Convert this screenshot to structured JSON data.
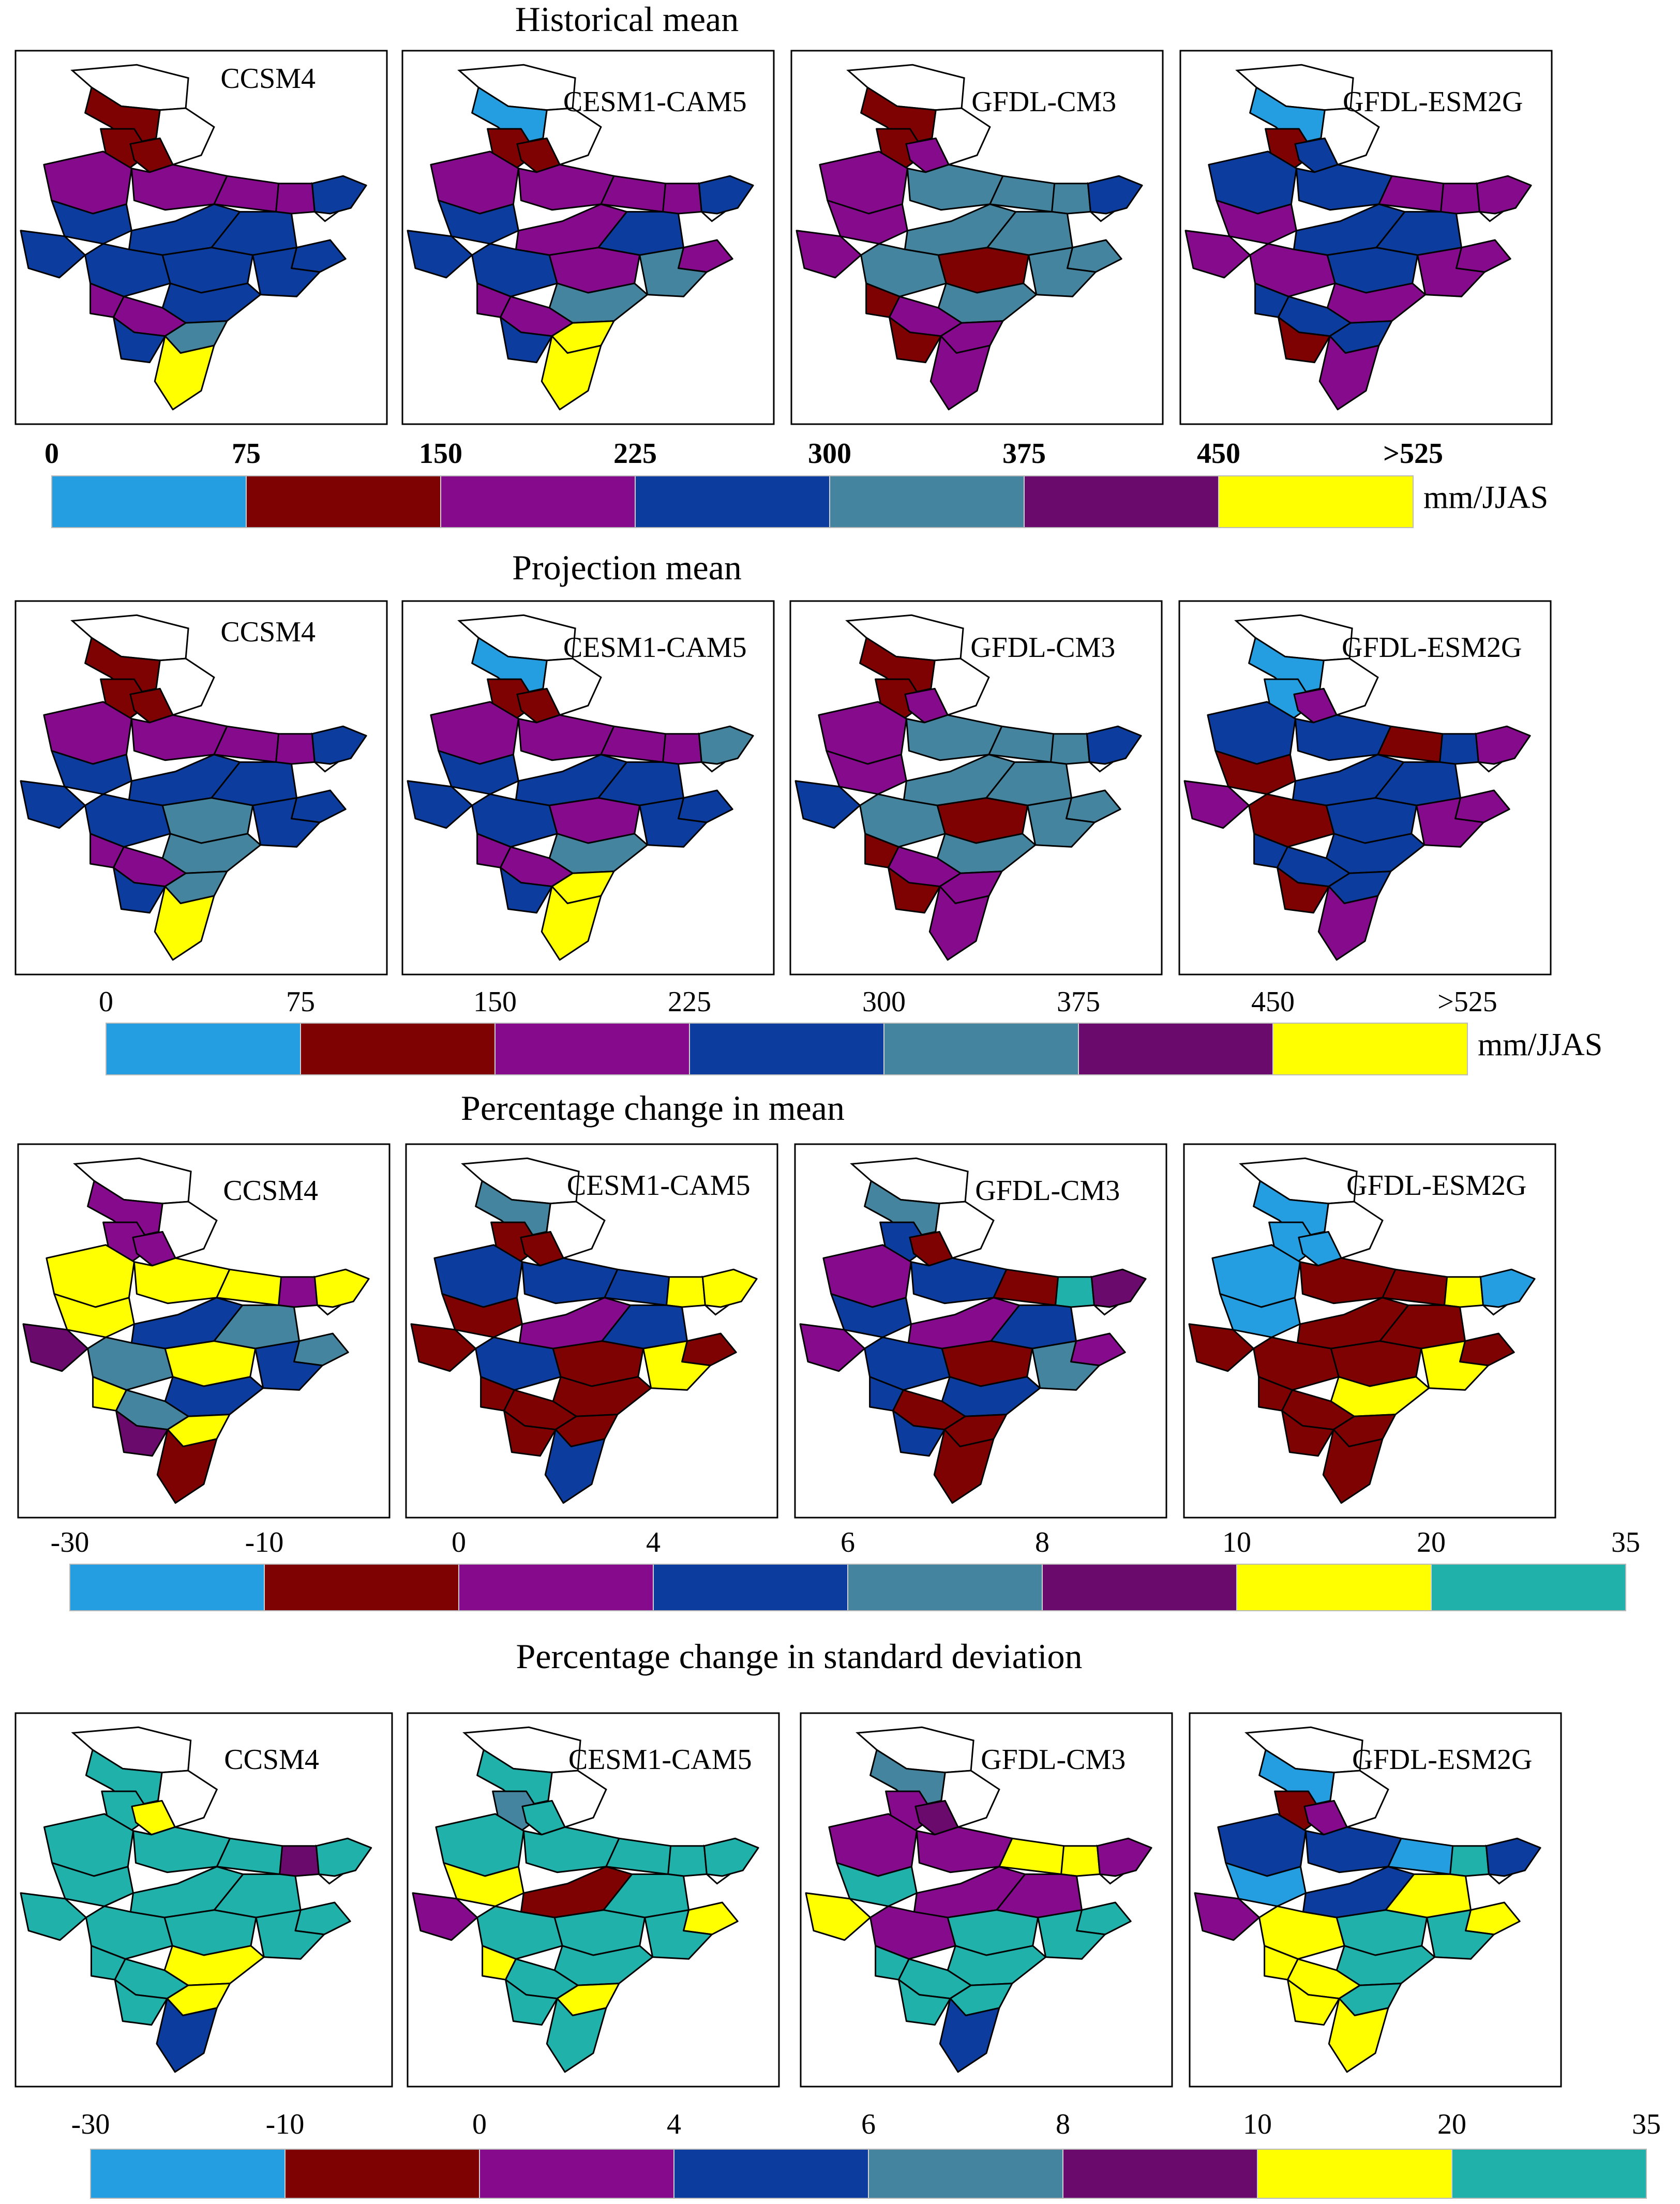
{
  "chart_data": {
    "type": "choropleth-panels",
    "rows": [
      {
        "title": "Historical mean",
        "unit": "mm/JJAS",
        "bold_ticks": true,
        "ticks": [
          "0",
          "75",
          "150",
          "225",
          "300",
          "375",
          "450",
          ">525"
        ],
        "colors": [
          "#249ee0",
          "#7f0202",
          "#850a8c",
          "#0c3c9e",
          "#45849e",
          "#6a0a6c",
          "#ffff00"
        ],
        "panels": [
          {
            "model": "CCSM4",
            "regions": [
              1,
              1,
              1,
              2,
              2,
              2,
              2,
              3,
              3,
              3,
              3,
              3,
              3,
              3,
              3,
              2,
              3,
              2,
              4,
              3,
              6,
              3
            ]
          },
          {
            "model": "CESM1-CAM5",
            "regions": [
              0,
              1,
              1,
              2,
              2,
              2,
              2,
              3,
              3,
              2,
              3,
              2,
              3,
              2,
              4,
              2,
              4,
              2,
              6,
              3,
              6,
              3
            ]
          },
          {
            "model": "GFDL-CM3",
            "regions": [
              1,
              1,
              2,
              2,
              4,
              4,
              4,
              2,
              2,
              4,
              4,
              4,
              4,
              1,
              4,
              1,
              4,
              2,
              2,
              1,
              2,
              3
            ]
          },
          {
            "model": "GFDL-ESM2G",
            "regions": [
              0,
              1,
              3,
              3,
              3,
              2,
              2,
              2,
              2,
              3,
              3,
              2,
              2,
              3,
              2,
              3,
              2,
              3,
              3,
              1,
              2,
              2
            ]
          }
        ]
      },
      {
        "title": "Projection mean",
        "unit": "mm/JJAS",
        "bold_ticks": false,
        "ticks": [
          "0",
          "75",
          "150",
          "225",
          "300",
          "375",
          "450",
          ">525"
        ],
        "colors": [
          "#249ee0",
          "#7f0202",
          "#850a8c",
          "#0c3c9e",
          "#45849e",
          "#6a0a6c",
          "#ffff00"
        ],
        "panels": [
          {
            "model": "CCSM4",
            "regions": [
              1,
              1,
              1,
              2,
              2,
              2,
              2,
              3,
              3,
              3,
              3,
              3,
              3,
              4,
              3,
              2,
              4,
              2,
              4,
              3,
              6,
              3
            ]
          },
          {
            "model": "CESM1-CAM5",
            "regions": [
              0,
              1,
              1,
              2,
              2,
              2,
              2,
              3,
              3,
              3,
              3,
              3,
              3,
              2,
              3,
              2,
              4,
              2,
              6,
              3,
              6,
              4
            ]
          },
          {
            "model": "GFDL-CM3",
            "regions": [
              1,
              1,
              2,
              2,
              4,
              4,
              4,
              2,
              3,
              4,
              4,
              4,
              4,
              1,
              4,
              1,
              4,
              2,
              2,
              1,
              2,
              3
            ]
          },
          {
            "model": "GFDL-ESM2G",
            "regions": [
              0,
              0,
              2,
              3,
              3,
              1,
              3,
              1,
              2,
              3,
              3,
              2,
              1,
              3,
              2,
              3,
              3,
              3,
              3,
              1,
              2,
              2
            ]
          }
        ]
      },
      {
        "title": "Percentage change in mean",
        "unit": "",
        "bold_ticks": false,
        "ticks": [
          "-30",
          "-10",
          "0",
          "4",
          "6",
          "8",
          "10",
          "20",
          "35"
        ],
        "colors": [
          "#249ee0",
          "#7f0202",
          "#850a8c",
          "#0c3c9e",
          "#45849e",
          "#6a0a6c",
          "#ffff00",
          "#20b2aa"
        ],
        "panels": [
          {
            "model": "CCSM4",
            "regions": [
              2,
              2,
              2,
              6,
              6,
              6,
              2,
              6,
              5,
              3,
              4,
              4,
              4,
              6,
              3,
              6,
              3,
              4,
              6,
              5,
              1,
              6
            ]
          },
          {
            "model": "CESM1-CAM5",
            "regions": [
              4,
              1,
              1,
              3,
              3,
              3,
              6,
              1,
              1,
              2,
              3,
              1,
              3,
              1,
              6,
              1,
              1,
              1,
              1,
              1,
              3,
              6
            ]
          },
          {
            "model": "GFDL-CM3",
            "regions": [
              4,
              3,
              1,
              2,
              3,
              1,
              7,
              3,
              2,
              2,
              3,
              2,
              3,
              1,
              4,
              3,
              3,
              1,
              1,
              3,
              1,
              5
            ]
          },
          {
            "model": "GFDL-ESM2G",
            "regions": [
              0,
              0,
              0,
              0,
              1,
              1,
              6,
              0,
              1,
              1,
              1,
              1,
              1,
              1,
              6,
              1,
              6,
              1,
              1,
              1,
              1,
              0
            ]
          }
        ]
      },
      {
        "title": "Percentage change in standard deviation",
        "unit": "",
        "bold_ticks": false,
        "ticks": [
          "-30",
          "-10",
          "0",
          "4",
          "6",
          "8",
          "10",
          "20",
          "35"
        ],
        "colors": [
          "#249ee0",
          "#7f0202",
          "#850a8c",
          "#0c3c9e",
          "#45849e",
          "#6a0a6c",
          "#ffff00",
          "#20b2aa"
        ],
        "panels": [
          {
            "model": "CCSM4",
            "regions": [
              7,
              7,
              6,
              7,
              7,
              7,
              5,
              7,
              7,
              7,
              7,
              7,
              7,
              7,
              7,
              7,
              6,
              7,
              6,
              7,
              3,
              7
            ]
          },
          {
            "model": "CESM1-CAM5",
            "regions": [
              7,
              4,
              7,
              7,
              7,
              7,
              7,
              6,
              2,
              1,
              7,
              6,
              7,
              7,
              7,
              6,
              7,
              7,
              6,
              7,
              7,
              7
            ]
          },
          {
            "model": "GFDL-CM3",
            "regions": [
              4,
              2,
              5,
              2,
              2,
              6,
              6,
              7,
              6,
              2,
              2,
              7,
              2,
              7,
              7,
              7,
              7,
              7,
              7,
              7,
              3,
              2
            ]
          },
          {
            "model": "GFDL-ESM2G",
            "regions": [
              0,
              1,
              2,
              3,
              3,
              0,
              7,
              0,
              2,
              3,
              6,
              6,
              6,
              7,
              7,
              6,
              7,
              6,
              7,
              6,
              6,
              3
            ]
          }
        ]
      }
    ]
  }
}
